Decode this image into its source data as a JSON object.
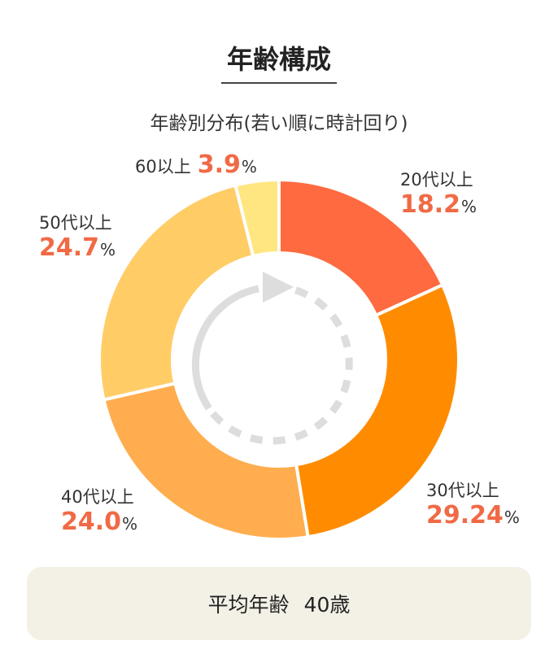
{
  "header": {
    "title": "年齢構成",
    "subtitle": "年齢別分布(若い順に時計回り)"
  },
  "summary": {
    "label": "平均年齢",
    "value": "40歳"
  },
  "colors": {
    "accent_text": "#f06a45",
    "arrow": "#dddddd"
  },
  "chart_data": {
    "type": "pie",
    "style": "donut",
    "direction": "clockwise",
    "unit": "%",
    "categories": [
      "20代以上",
      "30代以上",
      "40代以上",
      "50代以上",
      "60以上"
    ],
    "values": [
      18.2,
      29.24,
      24.0,
      24.7,
      3.9
    ],
    "value_labels": [
      "18.2",
      "29.24",
      "24.0",
      "24.7",
      "3.9"
    ],
    "colors": [
      "#ff6a40",
      "#ff8c00",
      "#ffad4f",
      "#ffcc66",
      "#ffe680"
    ]
  }
}
